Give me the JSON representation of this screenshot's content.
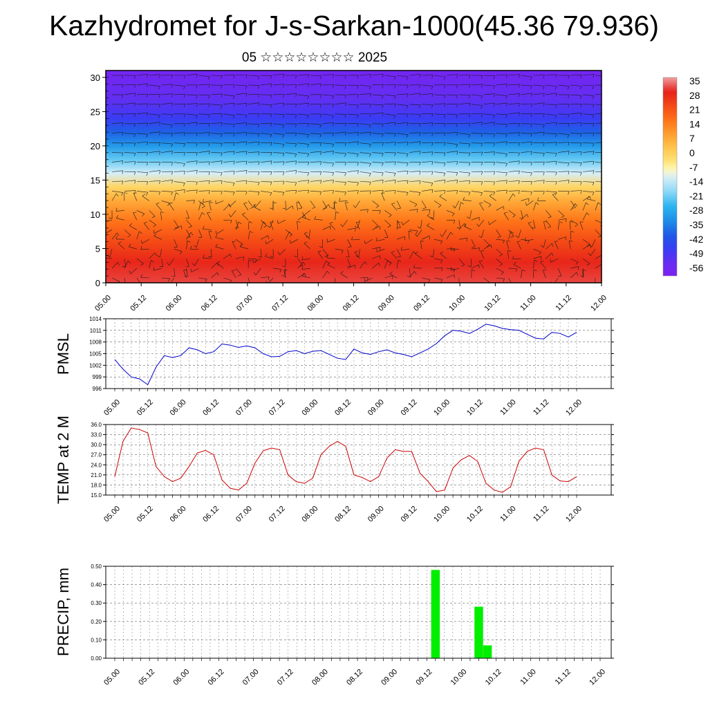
{
  "title": "Kazhydromet for J-s-Sarkan-1000(45.36 79.936)",
  "subtitle": "05 ☆☆☆☆☆☆☆☆ 2025",
  "chart_data": [
    {
      "type": "heatmap",
      "name": "vertical-cross-section",
      "x_tick_labels": [
        "05.00",
        "05.12",
        "06.00",
        "06.12",
        "07.00",
        "07.12",
        "08.00",
        "08.12",
        "09.00",
        "09.12",
        "10.00",
        "10.12",
        "11.00",
        "11.12",
        "12.00"
      ],
      "y_ticks": [
        0,
        5,
        10,
        15,
        20,
        25,
        30
      ],
      "ylim": [
        0,
        31
      ],
      "colorbar_labels": [
        "35",
        "28",
        "21",
        "14",
        "7",
        "0",
        "-7",
        "-14",
        "-21",
        "-28",
        "-35",
        "-42",
        "-49",
        "-56"
      ],
      "level_profile": [
        {
          "y": 0,
          "value": 30
        },
        {
          "y": 3,
          "value": 27
        },
        {
          "y": 6,
          "value": 21
        },
        {
          "y": 9,
          "value": 14
        },
        {
          "y": 12,
          "value": 5
        },
        {
          "y": 14,
          "value": -3
        },
        {
          "y": 16,
          "value": -14
        },
        {
          "y": 18,
          "value": -24
        },
        {
          "y": 20,
          "value": -33
        },
        {
          "y": 22,
          "value": -41
        },
        {
          "y": 24,
          "value": -49
        },
        {
          "y": 27,
          "value": -55
        },
        {
          "y": 31,
          "value": -60
        }
      ],
      "colors": {
        "hot": "#e8201a",
        "warm": "#ff8c00",
        "mild": "#ffe060",
        "cool": "#bfe6f8",
        "cold": "#1e5ae6",
        "frigid": "#7a30f0"
      },
      "overlay": "wind barbs"
    },
    {
      "type": "line",
      "name": "pmsl",
      "ylabel": "PMSL",
      "x_tick_labels": [
        "05.00",
        "05.12",
        "06.00",
        "06.12",
        "07.00",
        "07.12",
        "08.00",
        "08.12",
        "09.00",
        "09.12",
        "10.00",
        "10.12",
        "11.00",
        "11.12",
        "12.00"
      ],
      "y_tick_labels": [
        "996",
        "999",
        "1002",
        "1005",
        "1008",
        "1011",
        "1014"
      ],
      "ylim": [
        996,
        1014
      ],
      "color": "#0000cc",
      "values": [
        1003.5,
        1001,
        999,
        998.5,
        997,
        1001.5,
        1004.5,
        1004,
        1004.5,
        1006.5,
        1006,
        1005,
        1005.5,
        1007.5,
        1007.2,
        1006.6,
        1007,
        1006.5,
        1005,
        1004.2,
        1004.3,
        1005.5,
        1005.8,
        1005,
        1005.6,
        1005.8,
        1004.8,
        1003.8,
        1003.5,
        1006.2,
        1005.2,
        1004.8,
        1005.5,
        1006,
        1005.2,
        1004.8,
        1004.2,
        1005.2,
        1006.2,
        1007.6,
        1009.6,
        1011,
        1010.8,
        1010.2,
        1011.3,
        1012.6,
        1012.2,
        1011.5,
        1011.2,
        1011,
        1010,
        1009,
        1008.8,
        1010.5,
        1010.2,
        1009.3,
        1010.5
      ]
    },
    {
      "type": "line",
      "name": "temp-2m",
      "ylabel": "TEMP at 2 M",
      "x_tick_labels": [
        "05.00",
        "05.12",
        "06.00",
        "06.12",
        "07.00",
        "07.12",
        "08.00",
        "08.12",
        "09.00",
        "09.12",
        "10.00",
        "10.12",
        "11.00",
        "11.12",
        "12.00"
      ],
      "y_tick_labels": [
        "15.0",
        "18.0",
        "21.0",
        "24.0",
        "27.0",
        "30.0",
        "33.0",
        "36.0"
      ],
      "ylim": [
        15,
        36
      ],
      "color": "#cc0000",
      "values": [
        20.5,
        31,
        35,
        34.5,
        33.5,
        23.5,
        20.5,
        19,
        20,
        23.5,
        27.5,
        28.3,
        27,
        19.5,
        17,
        16.5,
        18.5,
        24.5,
        28.2,
        29,
        28.5,
        21,
        19,
        18.5,
        20,
        27,
        29.5,
        31,
        29.5,
        21,
        20.2,
        19,
        20.5,
        26,
        28.5,
        28,
        28,
        21.5,
        19,
        16,
        16.5,
        23,
        25.5,
        26.8,
        25,
        18.5,
        16.5,
        15.8,
        17.5,
        25,
        28,
        29,
        28.5,
        21,
        19.2,
        19,
        20.5
      ]
    },
    {
      "type": "bar",
      "name": "precip",
      "ylabel": "PRECIP, mm",
      "x_tick_labels": [
        "05.00",
        "05.12",
        "06.00",
        "06.12",
        "07.00",
        "07.12",
        "08.00",
        "08.12",
        "09.00",
        "09.12",
        "10.00",
        "10.12",
        "11.00",
        "11.12",
        "12.00"
      ],
      "y_tick_labels": [
        "0.00",
        "0.10",
        "0.20",
        "0.30",
        "0.40",
        "0.50"
      ],
      "ylim": [
        0,
        0.5
      ],
      "color": "#00ee00",
      "bars": [
        {
          "step": 37,
          "value": 0.48
        },
        {
          "step": 42,
          "value": 0.28
        },
        {
          "step": 43,
          "value": 0.07
        }
      ]
    }
  ]
}
